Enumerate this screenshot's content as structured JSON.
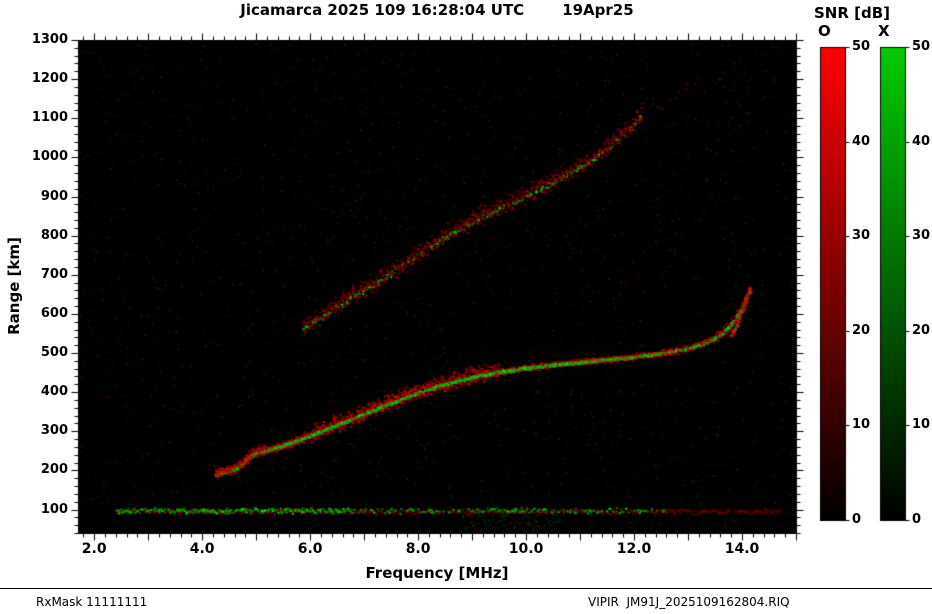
{
  "header": {
    "title": "Jicamarca 2025 109 16:28:04 UTC",
    "date": "19Apr25"
  },
  "footer": {
    "left": "RxMask 11111111",
    "right": "VIPIR  JM91J_2025109162804.RIQ"
  },
  "chart_data": {
    "type": "heatmap",
    "title": "Jicamarca 2025 109 16:28:04 UTC",
    "date_label": "19Apr25",
    "xlabel": "Frequency [MHz]",
    "ylabel": "Range [km]",
    "xlim": [
      1.7,
      15.0
    ],
    "ylim": [
      40,
      1300
    ],
    "xticks": [
      2.0,
      4.0,
      6.0,
      8.0,
      10.0,
      12.0,
      14.0
    ],
    "yticks": [
      100,
      200,
      300,
      400,
      500,
      600,
      700,
      800,
      900,
      1000,
      1100,
      1200,
      1300
    ],
    "x_minor_step": 0.2,
    "y_minor_step": 20,
    "background": "#000000",
    "grid": false,
    "colorbar": {
      "title": "SNR [dB]",
      "range": [
        0,
        50
      ],
      "ticks": [
        0,
        10,
        20,
        30,
        40,
        50
      ],
      "bars": [
        {
          "label": "O",
          "mode": "ordinary",
          "color": "#ff0000"
        },
        {
          "label": "X",
          "mode": "extraordinary",
          "color": "#00cc00"
        }
      ]
    },
    "series": [
      {
        "name": "F-layer first-hop echo trace",
        "modes": [
          "O",
          "X"
        ],
        "points": [
          [
            4.25,
            192
          ],
          [
            4.45,
            198
          ],
          [
            4.6,
            205
          ],
          [
            4.75,
            222
          ],
          [
            4.9,
            240
          ],
          [
            5.0,
            247
          ],
          [
            5.2,
            254
          ],
          [
            5.5,
            265
          ],
          [
            5.8,
            280
          ],
          [
            6.1,
            296
          ],
          [
            6.5,
            318
          ],
          [
            7.0,
            346
          ],
          [
            7.5,
            374
          ],
          [
            8.0,
            400
          ],
          [
            8.5,
            422
          ],
          [
            9.0,
            440
          ],
          [
            9.5,
            453
          ],
          [
            10.0,
            463
          ],
          [
            10.5,
            471
          ],
          [
            11.0,
            478
          ],
          [
            11.5,
            485
          ],
          [
            12.0,
            492
          ],
          [
            12.5,
            501
          ],
          [
            13.0,
            513
          ],
          [
            13.3,
            527
          ],
          [
            13.6,
            548
          ],
          [
            13.85,
            585
          ],
          [
            14.0,
            618
          ],
          [
            14.08,
            645
          ],
          [
            14.14,
            662
          ]
        ]
      },
      {
        "name": "second-hop echo trace",
        "modes": [
          "O",
          "X"
        ],
        "points": [
          [
            5.85,
            560
          ],
          [
            6.2,
            592
          ],
          [
            6.6,
            628
          ],
          [
            7.0,
            662
          ],
          [
            7.5,
            706
          ],
          [
            8.0,
            752
          ],
          [
            8.5,
            796
          ],
          [
            9.0,
            836
          ],
          [
            9.5,
            870
          ],
          [
            10.0,
            900
          ],
          [
            10.5,
            938
          ],
          [
            11.0,
            975
          ],
          [
            11.4,
            1012
          ],
          [
            11.7,
            1048
          ],
          [
            11.95,
            1082
          ],
          [
            12.15,
            1112
          ]
        ]
      },
      {
        "name": "low-altitude noise band",
        "modes": [
          "O",
          "X"
        ],
        "points": [
          [
            2.4,
            100
          ],
          [
            14.7,
            100
          ]
        ],
        "spread_km": 9
      }
    ]
  }
}
